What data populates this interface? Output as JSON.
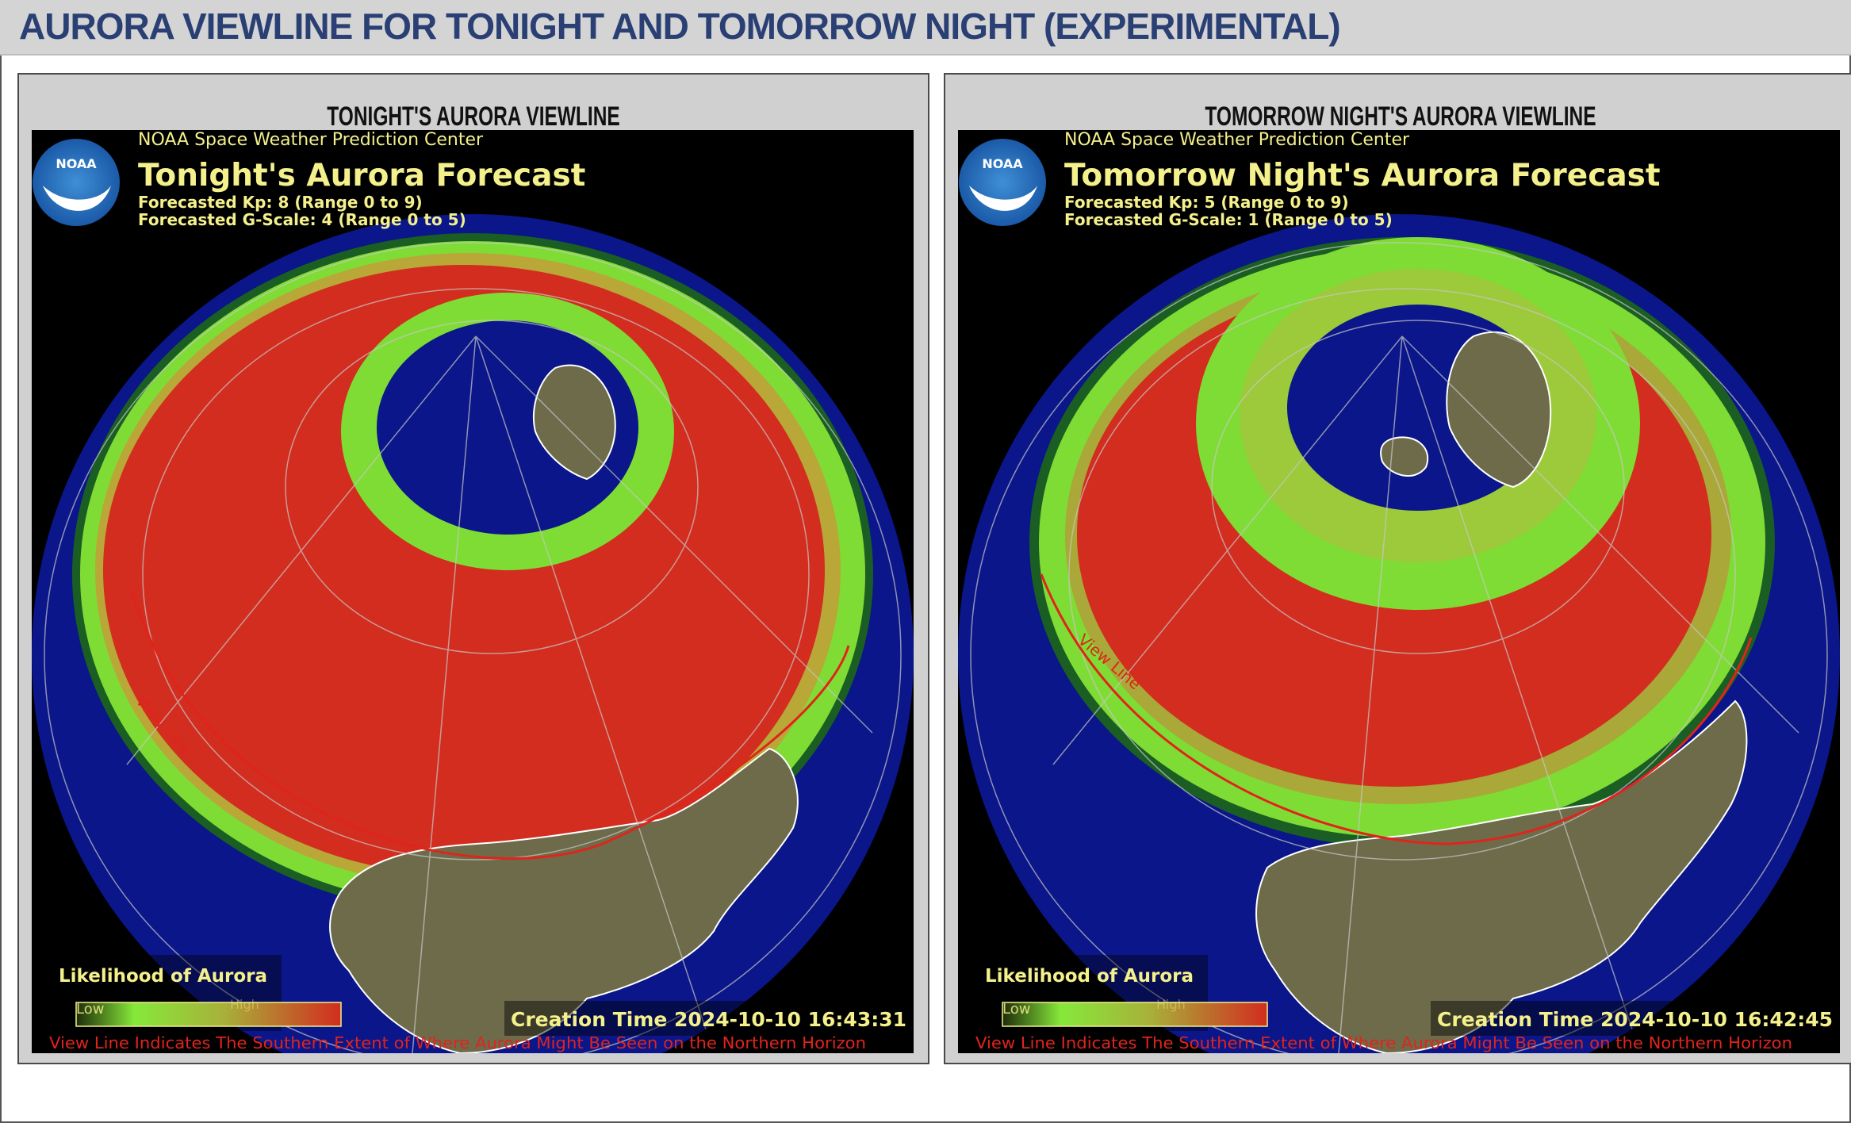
{
  "page": {
    "title": "AURORA VIEWLINE FOR TONIGHT AND TOMORROW NIGHT (EXPERIMENTAL)"
  },
  "colors": {
    "ocean": "#0a1689",
    "land": "#6d6b4a",
    "aurora_high": "#d22d1f",
    "aurora_low": "#86e83a",
    "view_line": "#e0241c",
    "header_text": "#f4f08c",
    "title_blue": "#2a3f73"
  },
  "panels": [
    {
      "heading": "TONIGHT'S AURORA VIEWLINE",
      "map": {
        "agency": "NOAA Space Weather Prediction Center",
        "logo_text": "NOAA",
        "forecast_title": "Tonight's Aurora Forecast",
        "kp_text": "Forecasted Kp: 8 (Range 0 to 9)",
        "gscale_text": "Forecasted G-Scale: 4 (Range 0 to 5)",
        "kp": 8,
        "gscale": 4,
        "legend_title": "Likelihood of Aurora",
        "legend_low": "Low",
        "legend_high": "High",
        "creation_time": "Creation Time 2024-10-10 16:43:31",
        "view_line_label": "View Line",
        "footer_note": "View Line Indicates The Southern Extent of Where Aurora Might Be Seen on the Northern Horizon"
      }
    },
    {
      "heading": "TOMORROW NIGHT'S AURORA VIEWLINE",
      "map": {
        "agency": "NOAA Space Weather Prediction Center",
        "logo_text": "NOAA",
        "forecast_title": "Tomorrow Night's Aurora Forecast",
        "kp_text": "Forecasted Kp: 5 (Range 0 to 9)",
        "gscale_text": "Forecasted G-Scale: 1 (Range 0 to 5)",
        "kp": 5,
        "gscale": 1,
        "legend_title": "Likelihood of Aurora",
        "legend_low": "Low",
        "legend_high": "High",
        "creation_time": "Creation Time 2024-10-10 16:42:45",
        "view_line_label": "View Line",
        "footer_note": "View Line Indicates The Southern Extent of Where Aurora Might Be Seen on the Northern Horizon"
      }
    }
  ]
}
